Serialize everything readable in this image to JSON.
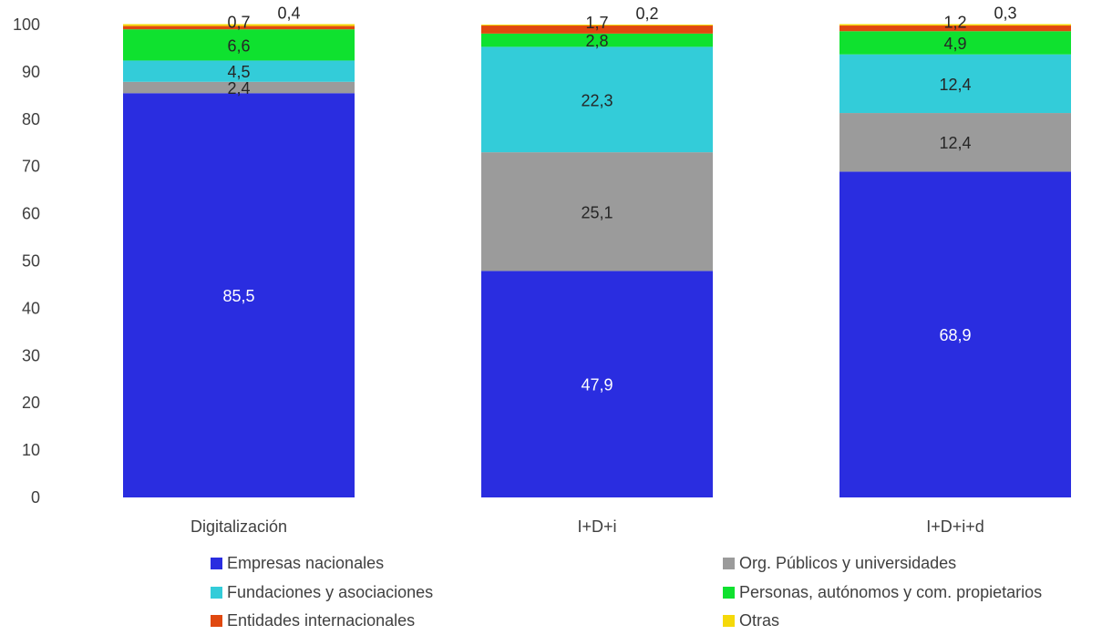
{
  "chart_data": {
    "type": "bar",
    "stacked": true,
    "categories": [
      "Digitalización",
      "I+D+i",
      "I+D+i+d"
    ],
    "ylim": [
      0,
      100
    ],
    "yticks": [
      0,
      10,
      20,
      30,
      40,
      50,
      60,
      70,
      80,
      90,
      100
    ],
    "grid": false,
    "legend_position": "bottom",
    "series": [
      {
        "name": "Empresas nacionales",
        "color": "#2a2de0",
        "values": [
          85.5,
          47.9,
          68.9
        ],
        "labels": [
          "85,5",
          "47,9",
          "68,9"
        ],
        "label_color": "#ffffff"
      },
      {
        "name": "Org. Públicos y universidades",
        "color": "#9b9b9b",
        "values": [
          2.4,
          25.1,
          12.4
        ],
        "labels": [
          "2,4",
          "25,1",
          "12,4"
        ],
        "label_color": "#262626"
      },
      {
        "name": "Fundaciones y asociaciones",
        "color": "#33ccd9",
        "values": [
          4.5,
          22.3,
          12.4
        ],
        "labels": [
          "4,5",
          "22,3",
          "12,4"
        ],
        "label_color": "#262626"
      },
      {
        "name": "Personas, autónomos y com. propietarios",
        "color": "#0fe12f",
        "values": [
          6.6,
          2.8,
          4.9
        ],
        "labels": [
          "6,6",
          "2,8",
          "4,9"
        ],
        "label_color": "#262626"
      },
      {
        "name": "Entidades internacionales",
        "color": "#e0480f",
        "values": [
          0.7,
          1.7,
          1.2
        ],
        "labels": [
          "0,7",
          "1,7",
          "1,2"
        ],
        "label_color": "#262626"
      },
      {
        "name": "Otras",
        "color": "#f5d90a",
        "values": [
          0.4,
          0.2,
          0.3
        ],
        "labels": [
          "0,4",
          "0,2",
          "0,3"
        ],
        "label_color": "#262626"
      }
    ],
    "legend_order": [
      0,
      1,
      2,
      3,
      4,
      5
    ]
  }
}
